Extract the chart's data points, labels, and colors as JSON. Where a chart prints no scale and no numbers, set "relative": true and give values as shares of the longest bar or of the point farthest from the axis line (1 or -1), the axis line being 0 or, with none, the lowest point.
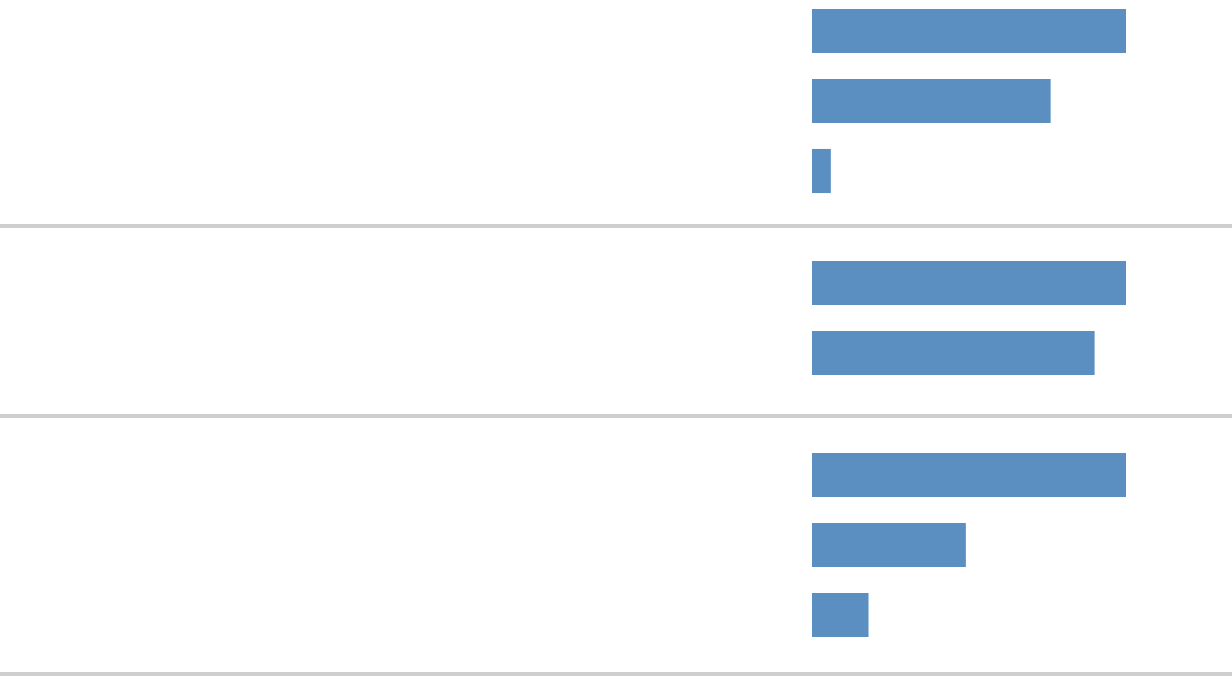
{
  "chart_data": [
    {
      "type": "bar",
      "orientation": "horizontal",
      "relative": true,
      "categories": [
        null,
        null,
        null
      ],
      "values": [
        1,
        0.76,
        0.06
      ],
      "color": "#5b8fc1"
    },
    {
      "type": "bar",
      "orientation": "horizontal",
      "relative": true,
      "categories": [
        null,
        null
      ],
      "values": [
        1,
        0.9
      ],
      "color": "#5b8fc1"
    },
    {
      "type": "bar",
      "orientation": "horizontal",
      "relative": true,
      "categories": [
        null,
        null,
        null
      ],
      "values": [
        1,
        0.49,
        0.18
      ],
      "color": "#5b8fc1"
    }
  ]
}
